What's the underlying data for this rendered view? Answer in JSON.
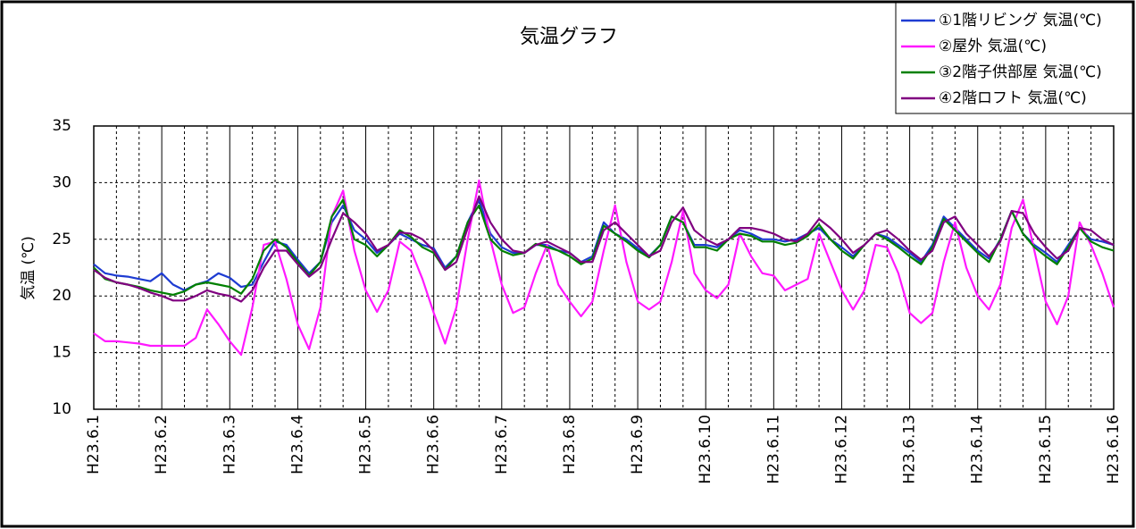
{
  "chart_data": {
    "type": "line",
    "title": "気温グラフ",
    "y_label": "気温 (℃)",
    "categories": [
      "H23.6.1",
      null,
      null,
      null,
      null,
      null,
      "H23.6.2",
      null,
      null,
      null,
      null,
      null,
      "H23.6.3",
      null,
      null,
      null,
      null,
      null,
      "H23.6.4",
      null,
      null,
      null,
      null,
      null,
      "H23.6.5",
      null,
      null,
      null,
      null,
      null,
      "H23.6.6",
      null,
      null,
      null,
      null,
      null,
      "H23.6.7",
      null,
      null,
      null,
      null,
      null,
      "H23.6.8",
      null,
      null,
      null,
      null,
      null,
      "H23.6.9",
      null,
      null,
      null,
      null,
      null,
      "H23.6.10",
      null,
      null,
      null,
      null,
      null,
      "H23.6.11",
      null,
      null,
      null,
      null,
      null,
      "H23.6.12",
      null,
      null,
      null,
      null,
      null,
      "H23.6.13",
      null,
      null,
      null,
      null,
      null,
      "H23.6.14",
      null,
      null,
      null,
      null,
      null,
      "H23.6.15",
      null,
      null,
      null,
      null,
      null,
      "H23.6.16"
    ],
    "series": [
      {
        "name": "①1階リビング 気温(℃)",
        "color": "#1e3cd2",
        "values": [
          22.8,
          22.0,
          21.8,
          21.7,
          21.5,
          21.3,
          22.0,
          21.0,
          20.5,
          21.0,
          21.3,
          22.0,
          21.6,
          20.8,
          21.0,
          23.0,
          24.8,
          24.5,
          23.2,
          22.0,
          23.0,
          26.5,
          28.0,
          25.8,
          25.0,
          23.8,
          24.5,
          25.5,
          25.0,
          24.5,
          24.2,
          22.5,
          23.5,
          26.5,
          28.5,
          25.5,
          24.3,
          23.8,
          23.8,
          24.5,
          24.5,
          24.0,
          23.8,
          23.0,
          23.5,
          26.5,
          25.5,
          25.0,
          24.2,
          23.5,
          24.5,
          27.0,
          26.5,
          24.5,
          24.5,
          24.3,
          25.0,
          25.8,
          25.5,
          25.0,
          25.0,
          24.8,
          25.0,
          25.5,
          26.0,
          25.0,
          24.3,
          23.5,
          24.5,
          25.5,
          25.2,
          24.5,
          23.8,
          23.0,
          24.5,
          27.0,
          26.0,
          25.0,
          24.0,
          23.3,
          25.0,
          27.5,
          25.5,
          24.5,
          23.8,
          23.0,
          24.5,
          26.0,
          25.0,
          24.8,
          24.5
        ]
      },
      {
        "name": "②屋外 気温(℃)",
        "color": "#ff19ff",
        "values": [
          16.7,
          16.0,
          16.0,
          15.9,
          15.8,
          15.6,
          15.6,
          15.6,
          15.6,
          16.3,
          18.8,
          17.5,
          16.0,
          14.8,
          19.0,
          24.5,
          24.8,
          21.5,
          17.5,
          15.3,
          19.0,
          27.0,
          29.3,
          24.0,
          20.5,
          18.6,
          20.5,
          24.8,
          24.0,
          21.5,
          18.5,
          15.8,
          19.0,
          25.0,
          30.2,
          25.0,
          21.0,
          18.5,
          19.0,
          22.0,
          24.5,
          21.0,
          19.5,
          18.2,
          19.5,
          24.0,
          28.0,
          23.0,
          19.5,
          18.8,
          19.5,
          23.0,
          27.5,
          22.0,
          20.5,
          19.8,
          21.0,
          25.5,
          23.5,
          22.0,
          21.8,
          20.5,
          21.0,
          21.5,
          25.5,
          23.0,
          20.5,
          18.8,
          20.5,
          24.5,
          24.3,
          22.0,
          18.5,
          17.6,
          18.5,
          23.0,
          26.5,
          22.5,
          20.0,
          18.8,
          21.0,
          26.0,
          28.5,
          24.0,
          19.5,
          17.5,
          20.0,
          26.5,
          24.5,
          22.0,
          19.0
        ]
      },
      {
        "name": "③2階子供部屋 気温(℃)",
        "color": "#008000",
        "values": [
          22.5,
          21.5,
          21.2,
          21.0,
          20.8,
          20.5,
          20.3,
          20.1,
          20.4,
          21.0,
          21.2,
          21.0,
          20.8,
          20.2,
          21.5,
          24.0,
          25.0,
          24.3,
          23.0,
          21.8,
          23.0,
          27.0,
          28.5,
          25.0,
          24.5,
          23.5,
          24.5,
          25.8,
          25.2,
          24.3,
          23.8,
          22.3,
          23.5,
          26.5,
          28.0,
          25.0,
          24.0,
          23.6,
          23.8,
          24.6,
          24.3,
          24.0,
          23.5,
          22.8,
          23.3,
          26.2,
          25.5,
          24.8,
          24.0,
          23.4,
          24.5,
          27.0,
          26.5,
          24.3,
          24.3,
          24.0,
          25.0,
          25.5,
          25.3,
          24.8,
          24.8,
          24.5,
          24.7,
          25.3,
          26.3,
          25.0,
          24.0,
          23.3,
          24.5,
          25.5,
          25.0,
          24.3,
          23.5,
          22.8,
          24.3,
          26.8,
          25.8,
          24.8,
          23.8,
          23.0,
          25.0,
          27.5,
          25.5,
          24.3,
          23.5,
          22.8,
          24.3,
          26.0,
          24.8,
          24.3,
          24.0
        ]
      },
      {
        "name": "④2階ロフト 気温(℃)",
        "color": "#800080",
        "values": [
          22.3,
          21.6,
          21.2,
          21.0,
          20.7,
          20.3,
          20.0,
          19.6,
          19.6,
          20.0,
          20.5,
          20.2,
          20.0,
          19.5,
          20.5,
          22.5,
          24.0,
          24.0,
          22.8,
          21.7,
          22.5,
          25.0,
          27.3,
          26.5,
          25.5,
          24.0,
          24.5,
          25.6,
          25.5,
          25.0,
          24.0,
          22.3,
          23.0,
          26.0,
          28.8,
          26.5,
          25.0,
          24.0,
          23.8,
          24.5,
          24.8,
          24.3,
          23.8,
          23.0,
          23.0,
          25.8,
          26.5,
          25.5,
          24.5,
          23.5,
          24.0,
          26.5,
          27.8,
          25.8,
          25.0,
          24.5,
          25.0,
          26.0,
          26.0,
          25.8,
          25.5,
          25.0,
          24.8,
          25.5,
          26.8,
          26.0,
          25.0,
          23.8,
          24.5,
          25.5,
          25.8,
          25.0,
          24.0,
          23.2,
          24.0,
          26.5,
          27.0,
          25.5,
          24.5,
          23.5,
          24.8,
          27.5,
          27.3,
          25.5,
          24.3,
          23.3,
          24.0,
          26.0,
          25.8,
          25.0,
          24.5
        ]
      }
    ],
    "ylim": [
      10,
      35
    ],
    "yticks": [
      10,
      15,
      20,
      25,
      30,
      35
    ],
    "grid": true,
    "legend": "upper right"
  }
}
